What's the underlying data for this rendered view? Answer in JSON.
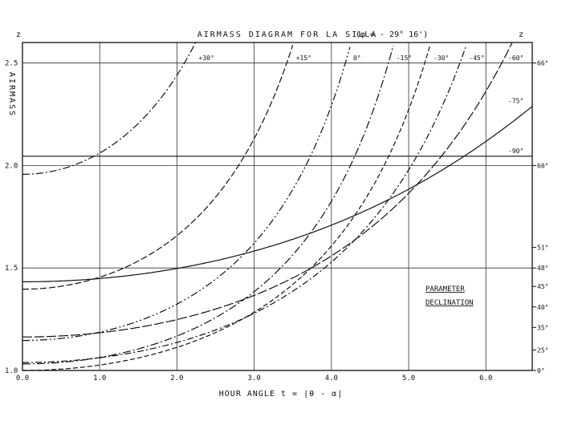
{
  "chart_data": {
    "type": "line",
    "title": "AIRMASS DIAGRAM FOR LA SILLA",
    "subtitle": "(φ = - 29° 16')",
    "corner_label_left": "z",
    "corner_label_right": "z",
    "xlabel": "HOUR ANGLE  t = |θ - α|",
    "ylabel": "AIRMASS",
    "xlim": [
      0,
      6.6
    ],
    "ylim": [
      1.0,
      2.6
    ],
    "x_ticks": [
      {
        "value": 0,
        "label": "0.0"
      },
      {
        "value": 1,
        "label": "1.0"
      },
      {
        "value": 2,
        "label": "2.0"
      },
      {
        "value": 3,
        "label": "3.0"
      },
      {
        "value": 4,
        "label": "4.0"
      },
      {
        "value": 5,
        "label": "5.0"
      },
      {
        "value": 6,
        "label": "6.0"
      }
    ],
    "y_ticks": [
      {
        "value": 1.0,
        "label": "1.0"
      },
      {
        "value": 1.5,
        "label": "1.5"
      },
      {
        "value": 2.0,
        "label": "2.0"
      },
      {
        "value": 2.5,
        "label": "2.5"
      }
    ],
    "zenith_ticks": [
      {
        "airmass": 2.5,
        "label": "66°"
      },
      {
        "airmass": 2.0,
        "label": "60°"
      },
      {
        "airmass": 1.6,
        "label": "51°"
      },
      {
        "airmass": 1.5,
        "label": "48°"
      },
      {
        "airmass": 1.41,
        "label": "45°"
      },
      {
        "airmass": 1.31,
        "label": "40°"
      },
      {
        "airmass": 1.21,
        "label": "35°"
      },
      {
        "airmass": 1.1,
        "label": "25°"
      },
      {
        "airmass": 1.0,
        "label": "0°"
      }
    ],
    "latitude_deg": -29.27,
    "grid": true,
    "legend_text": [
      "PARAMETER",
      "DECLINATION"
    ],
    "series": [
      {
        "name": "+30°",
        "declination": 30
      },
      {
        "name": "+15°",
        "declination": 15
      },
      {
        "name": "0°",
        "declination": 0
      },
      {
        "name": "-15°",
        "declination": -15
      },
      {
        "name": "-30°",
        "declination": -30
      },
      {
        "name": "-45°",
        "declination": -45
      },
      {
        "name": "-60°",
        "declination": -60
      },
      {
        "name": "-75°",
        "declination": -75
      },
      {
        "name": "-90°",
        "declination": -90
      }
    ]
  }
}
